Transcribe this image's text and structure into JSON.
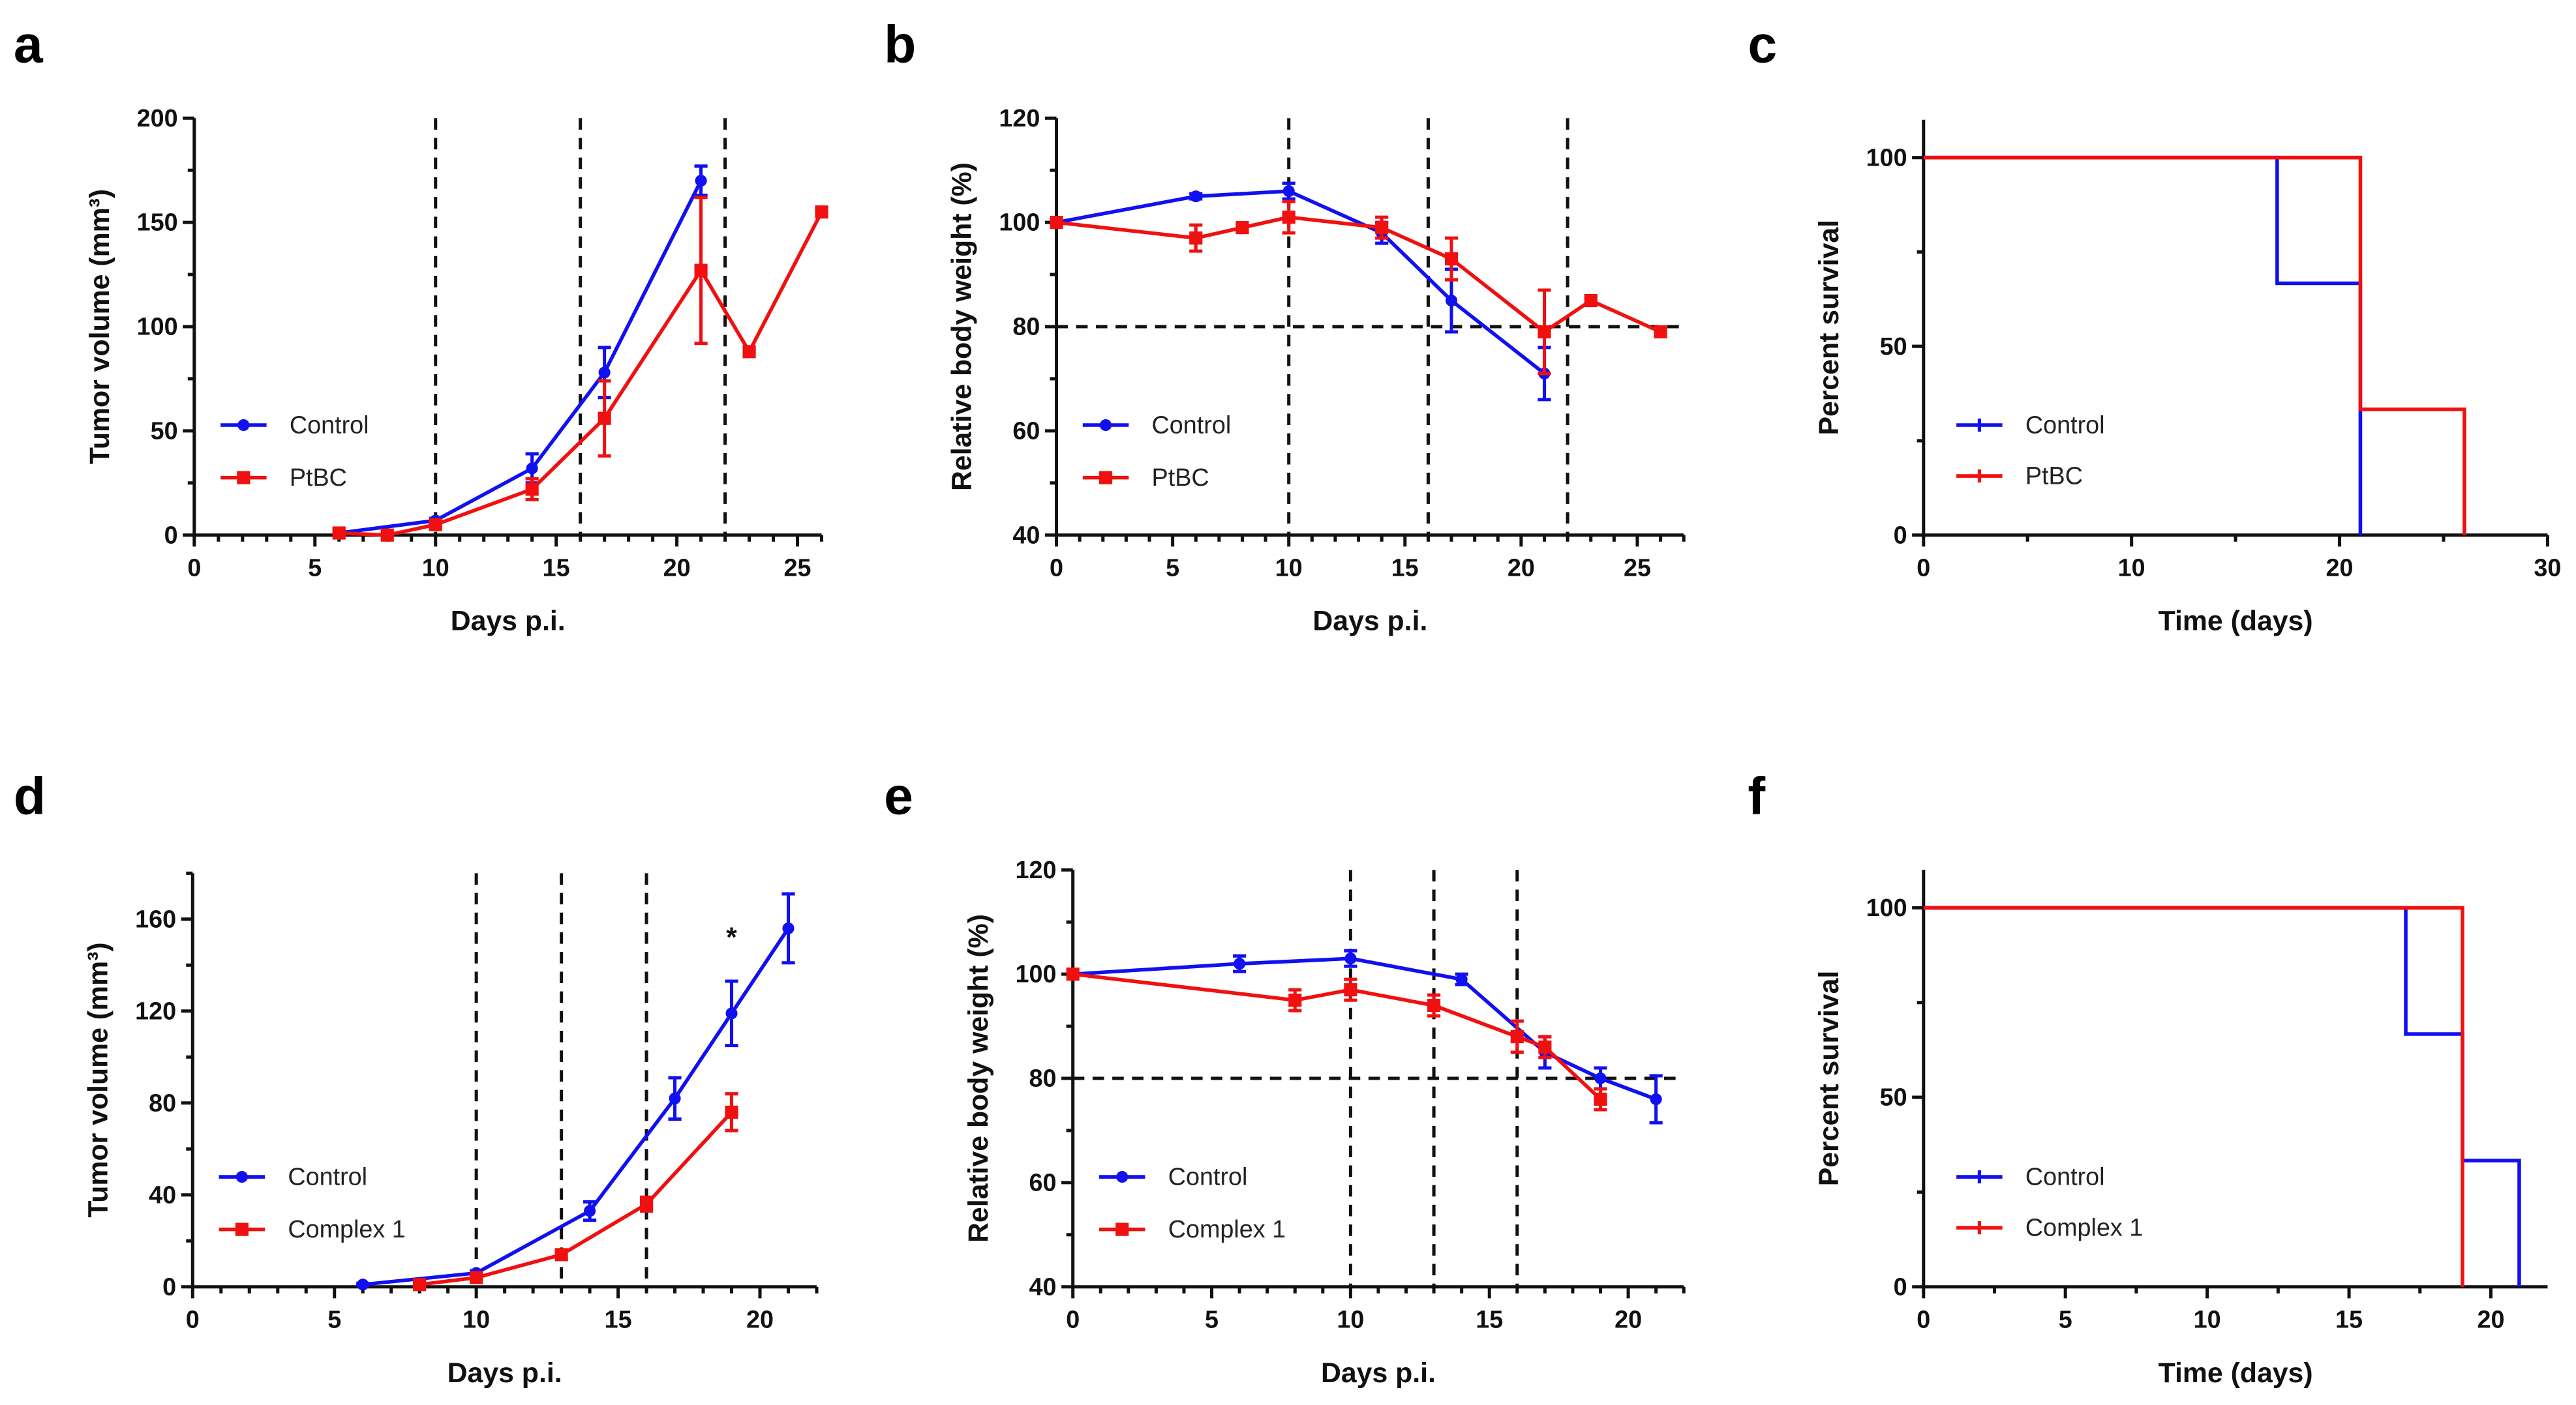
{
  "colors": {
    "control": "#1010f0",
    "treated": "#f01010",
    "axis": "#111111"
  },
  "chart_data": [
    {
      "panel": "a",
      "type": "line",
      "xlabel": "Days p.i.",
      "ylabel": "Tumor volume (mm³)",
      "xlim": [
        0,
        26
      ],
      "ylim": [
        0,
        200
      ],
      "xticks": [
        0,
        5,
        10,
        15,
        20,
        25
      ],
      "yticks": [
        0,
        50,
        100,
        150,
        200
      ],
      "vlines": [
        10,
        16,
        22
      ],
      "hlines": [],
      "legend": "bottom-left",
      "series": [
        {
          "name": "Control",
          "color": "control",
          "marker": "circle",
          "x": [
            6,
            10,
            14,
            17,
            21
          ],
          "y": [
            1,
            7,
            32,
            78,
            170
          ],
          "err": [
            1,
            1,
            7,
            12,
            7
          ]
        },
        {
          "name": "PtBC",
          "color": "treated",
          "marker": "square",
          "x": [
            6,
            8,
            10,
            14,
            17,
            21,
            23,
            26
          ],
          "y": [
            1,
            0,
            5,
            22,
            56,
            127,
            88,
            155
          ],
          "err": [
            1,
            0,
            1,
            5,
            18,
            35,
            0,
            0
          ]
        }
      ]
    },
    {
      "panel": "b",
      "type": "line",
      "xlabel": "Days p.i.",
      "ylabel": "Relative body weight (%)",
      "xlim": [
        0,
        27
      ],
      "ylim": [
        40,
        120
      ],
      "xticks": [
        0,
        5,
        10,
        15,
        20,
        25
      ],
      "yticks": [
        40,
        60,
        80,
        100,
        120
      ],
      "vlines": [
        10,
        16,
        22
      ],
      "hlines": [
        80
      ],
      "legend": "bottom-left",
      "series": [
        {
          "name": "Control",
          "color": "control",
          "marker": "circle",
          "x": [
            0,
            6,
            10,
            14,
            17,
            21
          ],
          "y": [
            100,
            105,
            106,
            98,
            85,
            71
          ],
          "err": [
            0,
            0.5,
            1.5,
            2,
            6,
            5
          ]
        },
        {
          "name": "PtBC",
          "color": "treated",
          "marker": "square",
          "x": [
            0,
            6,
            8,
            10,
            14,
            17,
            21,
            23,
            26
          ],
          "y": [
            100,
            97,
            99,
            101,
            99,
            93,
            79,
            85,
            79
          ],
          "err": [
            0,
            2.5,
            0.5,
            3,
            2,
            4,
            8,
            0,
            0
          ]
        }
      ]
    },
    {
      "panel": "c",
      "type": "step",
      "xlabel": "Time (days)",
      "ylabel": "Percent survival",
      "xlim": [
        0,
        30
      ],
      "ylim": [
        0,
        110
      ],
      "xticks": [
        0,
        10,
        20,
        30
      ],
      "yticks": [
        0,
        50,
        100
      ],
      "vlines": [],
      "hlines": [],
      "legend": "bottom-left",
      "series": [
        {
          "name": "Control",
          "color": "control",
          "x": [
            0,
            17,
            21
          ],
          "y": [
            100,
            66.7,
            0
          ]
        },
        {
          "name": "PtBC",
          "color": "treated",
          "x": [
            0,
            21,
            26
          ],
          "y": [
            100,
            33.3,
            0
          ]
        }
      ]
    },
    {
      "panel": "d",
      "type": "line",
      "xlabel": "Days p.i.",
      "ylabel": "Tumor volume (mm³)",
      "xlim": [
        0,
        22
      ],
      "ylim": [
        0,
        180
      ],
      "xticks": [
        0,
        5,
        10,
        15,
        20
      ],
      "yticks": [
        0,
        40,
        80,
        120,
        160
      ],
      "vlines": [
        10,
        13,
        16
      ],
      "hlines": [],
      "annotations": [
        {
          "text": "*",
          "x": 19,
          "y": 148
        }
      ],
      "legend": "bottom-left",
      "series": [
        {
          "name": "Control",
          "color": "control",
          "marker": "circle",
          "x": [
            6,
            10,
            14,
            17,
            19,
            21
          ],
          "y": [
            1,
            6,
            33,
            82,
            119,
            156
          ],
          "err": [
            0.5,
            1,
            4,
            9,
            14,
            15
          ]
        },
        {
          "name": "Complex 1",
          "color": "treated",
          "marker": "square",
          "x": [
            8,
            10,
            13,
            16,
            19
          ],
          "y": [
            1,
            4,
            14,
            36,
            76
          ],
          "err": [
            0.5,
            1,
            2,
            3,
            8
          ]
        }
      ]
    },
    {
      "panel": "e",
      "type": "line",
      "xlabel": "Days p.i.",
      "ylabel": "Relative body weight (%)",
      "xlim": [
        0,
        22
      ],
      "ylim": [
        40,
        120
      ],
      "xticks": [
        0,
        5,
        10,
        15,
        20
      ],
      "yticks": [
        40,
        60,
        80,
        100,
        120
      ],
      "vlines": [
        10,
        13,
        16
      ],
      "hlines": [
        80
      ],
      "legend": "bottom-left",
      "series": [
        {
          "name": "Control",
          "color": "control",
          "marker": "circle",
          "x": [
            0,
            6,
            10,
            14,
            17,
            19,
            21
          ],
          "y": [
            100,
            102,
            103,
            99,
            85,
            80,
            76
          ],
          "err": [
            0,
            1.5,
            1.5,
            1,
            3,
            2,
            4.5
          ]
        },
        {
          "name": "Complex 1",
          "color": "treated",
          "marker": "square",
          "x": [
            0,
            8,
            10,
            13,
            16,
            17,
            19
          ],
          "y": [
            100,
            95,
            97,
            94,
            88,
            86,
            76
          ],
          "err": [
            0,
            2,
            2,
            2,
            3,
            2,
            2
          ]
        }
      ]
    },
    {
      "panel": "f",
      "type": "step",
      "xlabel": "Time (days)",
      "ylabel": "Percent survival",
      "xlim": [
        0,
        22
      ],
      "ylim": [
        0,
        110
      ],
      "xticks": [
        0,
        5,
        10,
        15,
        20
      ],
      "yticks": [
        0,
        50,
        100
      ],
      "vlines": [],
      "hlines": [],
      "legend": "bottom-left",
      "series": [
        {
          "name": "Control",
          "color": "control",
          "x": [
            0,
            17,
            19,
            21
          ],
          "y": [
            100,
            66.7,
            33.3,
            0
          ]
        },
        {
          "name": "Complex 1",
          "color": "treated",
          "x": [
            0,
            19
          ],
          "y": [
            100,
            0
          ]
        }
      ]
    }
  ]
}
